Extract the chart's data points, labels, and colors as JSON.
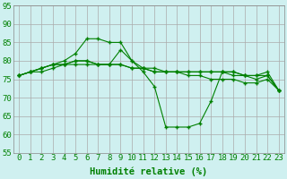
{
  "x": [
    0,
    1,
    2,
    3,
    4,
    5,
    6,
    7,
    8,
    9,
    10,
    11,
    12,
    13,
    14,
    15,
    16,
    17,
    18,
    19,
    20,
    21,
    22,
    23
  ],
  "line1": [
    76,
    77,
    78,
    79,
    80,
    82,
    86,
    86,
    85,
    85,
    80,
    77,
    73,
    62,
    62,
    62,
    63,
    69,
    77,
    77,
    76,
    75,
    76,
    72
  ],
  "line2": [
    76,
    77,
    78,
    79,
    79,
    80,
    80,
    79,
    79,
    79,
    78,
    78,
    77,
    77,
    77,
    77,
    77,
    77,
    77,
    77,
    76,
    76,
    77,
    72
  ],
  "line3": [
    76,
    77,
    78,
    79,
    79,
    80,
    80,
    79,
    79,
    79,
    78,
    78,
    77,
    77,
    77,
    76,
    76,
    75,
    75,
    75,
    74,
    74,
    75,
    72
  ],
  "line4": [
    76,
    77,
    77,
    78,
    79,
    79,
    79,
    79,
    79,
    83,
    80,
    78,
    78,
    77,
    77,
    77,
    77,
    77,
    77,
    76,
    76,
    76,
    76,
    72
  ],
  "line_color": "#008000",
  "bg_color": "#cff0f0",
  "grid_color": "#aaaaaa",
  "xlabel": "Humidité relative (%)",
  "ylim": [
    55,
    95
  ],
  "xlim": [
    -0.5,
    23.5
  ],
  "yticks": [
    55,
    60,
    65,
    70,
    75,
    80,
    85,
    90,
    95
  ],
  "xticks": [
    0,
    1,
    2,
    3,
    4,
    5,
    6,
    7,
    8,
    9,
    10,
    11,
    12,
    13,
    14,
    15,
    16,
    17,
    18,
    19,
    20,
    21,
    22,
    23
  ],
  "xlabel_fontsize": 7.5,
  "tick_fontsize": 6.5
}
